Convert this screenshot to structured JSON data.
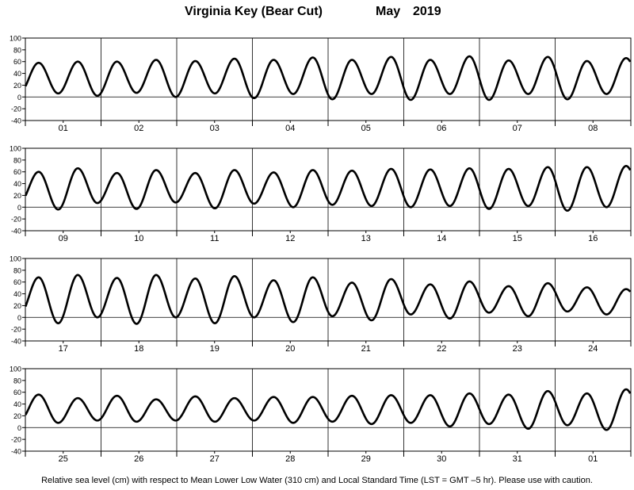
{
  "header": {
    "station": "Virginia Key (Bear Cut)",
    "month": "May",
    "year": "2019"
  },
  "footer": {
    "note": "Relative sea level (cm) with respect to Mean Lower Low Water (310 cm) and Local Standard Time (LST = GMT –5 hr). Please use with caution."
  },
  "chart_data": {
    "type": "line",
    "title": "Virginia Key (Bear Cut)     May   2019",
    "ylabel": "",
    "xlabel": "",
    "units": "cm",
    "ylim": [
      -40,
      100
    ],
    "y_ticks": [
      -40,
      -20,
      0,
      20,
      40,
      60,
      80,
      100
    ],
    "grid": "vertical lines at day boundaries, horizontal line at 0",
    "color": "#000000",
    "panels": [
      {
        "days": [
          "01",
          "02",
          "03",
          "04",
          "05",
          "06",
          "07",
          "08"
        ],
        "high_tides": [
          58,
          60,
          60,
          63,
          61,
          65,
          63,
          67,
          63,
          68,
          63,
          69,
          62,
          68,
          61,
          66
        ],
        "low_tides": [
          5,
          6,
          2,
          7,
          0,
          6,
          -2,
          5,
          -4,
          5,
          -5,
          5,
          -5,
          5,
          -4,
          5
        ]
      },
      {
        "days": [
          "09",
          "10",
          "11",
          "12",
          "13",
          "14",
          "15",
          "16"
        ],
        "high_tides": [
          60,
          66,
          58,
          63,
          58,
          63,
          59,
          63,
          62,
          65,
          64,
          66,
          65,
          68,
          68,
          70
        ],
        "low_tides": [
          6,
          -4,
          7,
          -3,
          8,
          -2,
          6,
          0,
          4,
          2,
          0,
          2,
          -3,
          2,
          -6,
          0
        ]
      },
      {
        "days": [
          "17",
          "18",
          "19",
          "20",
          "21",
          "22",
          "23",
          "24"
        ],
        "high_tides": [
          68,
          72,
          67,
          72,
          66,
          70,
          63,
          68,
          59,
          65,
          56,
          61,
          53,
          58,
          51,
          48
        ],
        "low_tides": [
          2,
          -10,
          0,
          -11,
          0,
          -10,
          0,
          -8,
          2,
          -5,
          5,
          -2,
          8,
          2,
          10,
          5
        ]
      },
      {
        "days": [
          "25",
          "26",
          "27",
          "28",
          "29",
          "30",
          "31",
          "01"
        ],
        "high_tides": [
          56,
          50,
          54,
          48,
          53,
          50,
          52,
          52,
          54,
          55,
          55,
          58,
          56,
          62,
          58,
          65
        ],
        "low_tides": [
          10,
          8,
          12,
          10,
          12,
          10,
          12,
          8,
          10,
          6,
          8,
          2,
          6,
          -2,
          4,
          -4
        ]
      }
    ]
  }
}
